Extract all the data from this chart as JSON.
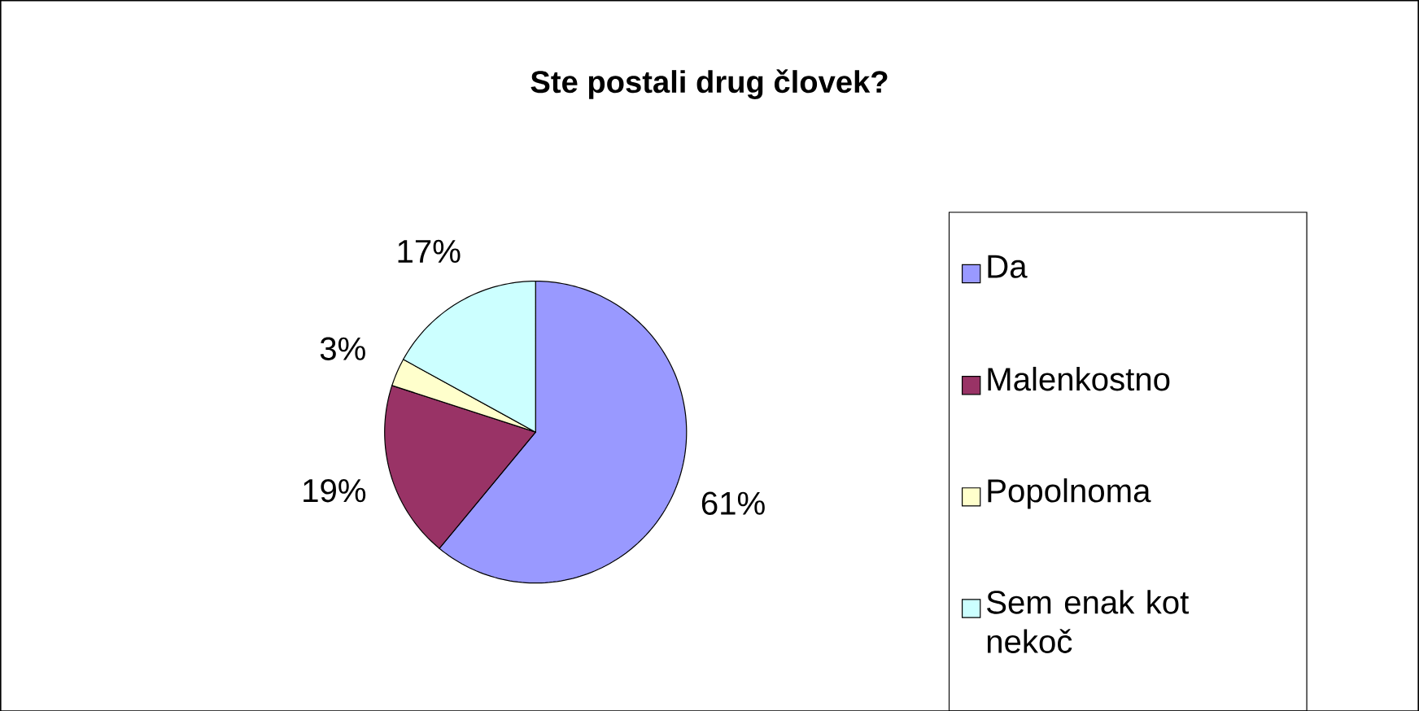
{
  "chart_data": {
    "type": "pie",
    "title": "Ste postali drug človek?",
    "categories": [
      "Da",
      "Malenkostno",
      "Popolnoma",
      "Sem enak kot nekoč"
    ],
    "values": [
      61,
      19,
      3,
      17
    ],
    "value_labels": [
      "61%",
      "19%",
      "3%",
      "17%"
    ],
    "colors": [
      "#9999ff",
      "#993366",
      "#ffffcc",
      "#ccffff"
    ],
    "legend": "right"
  }
}
